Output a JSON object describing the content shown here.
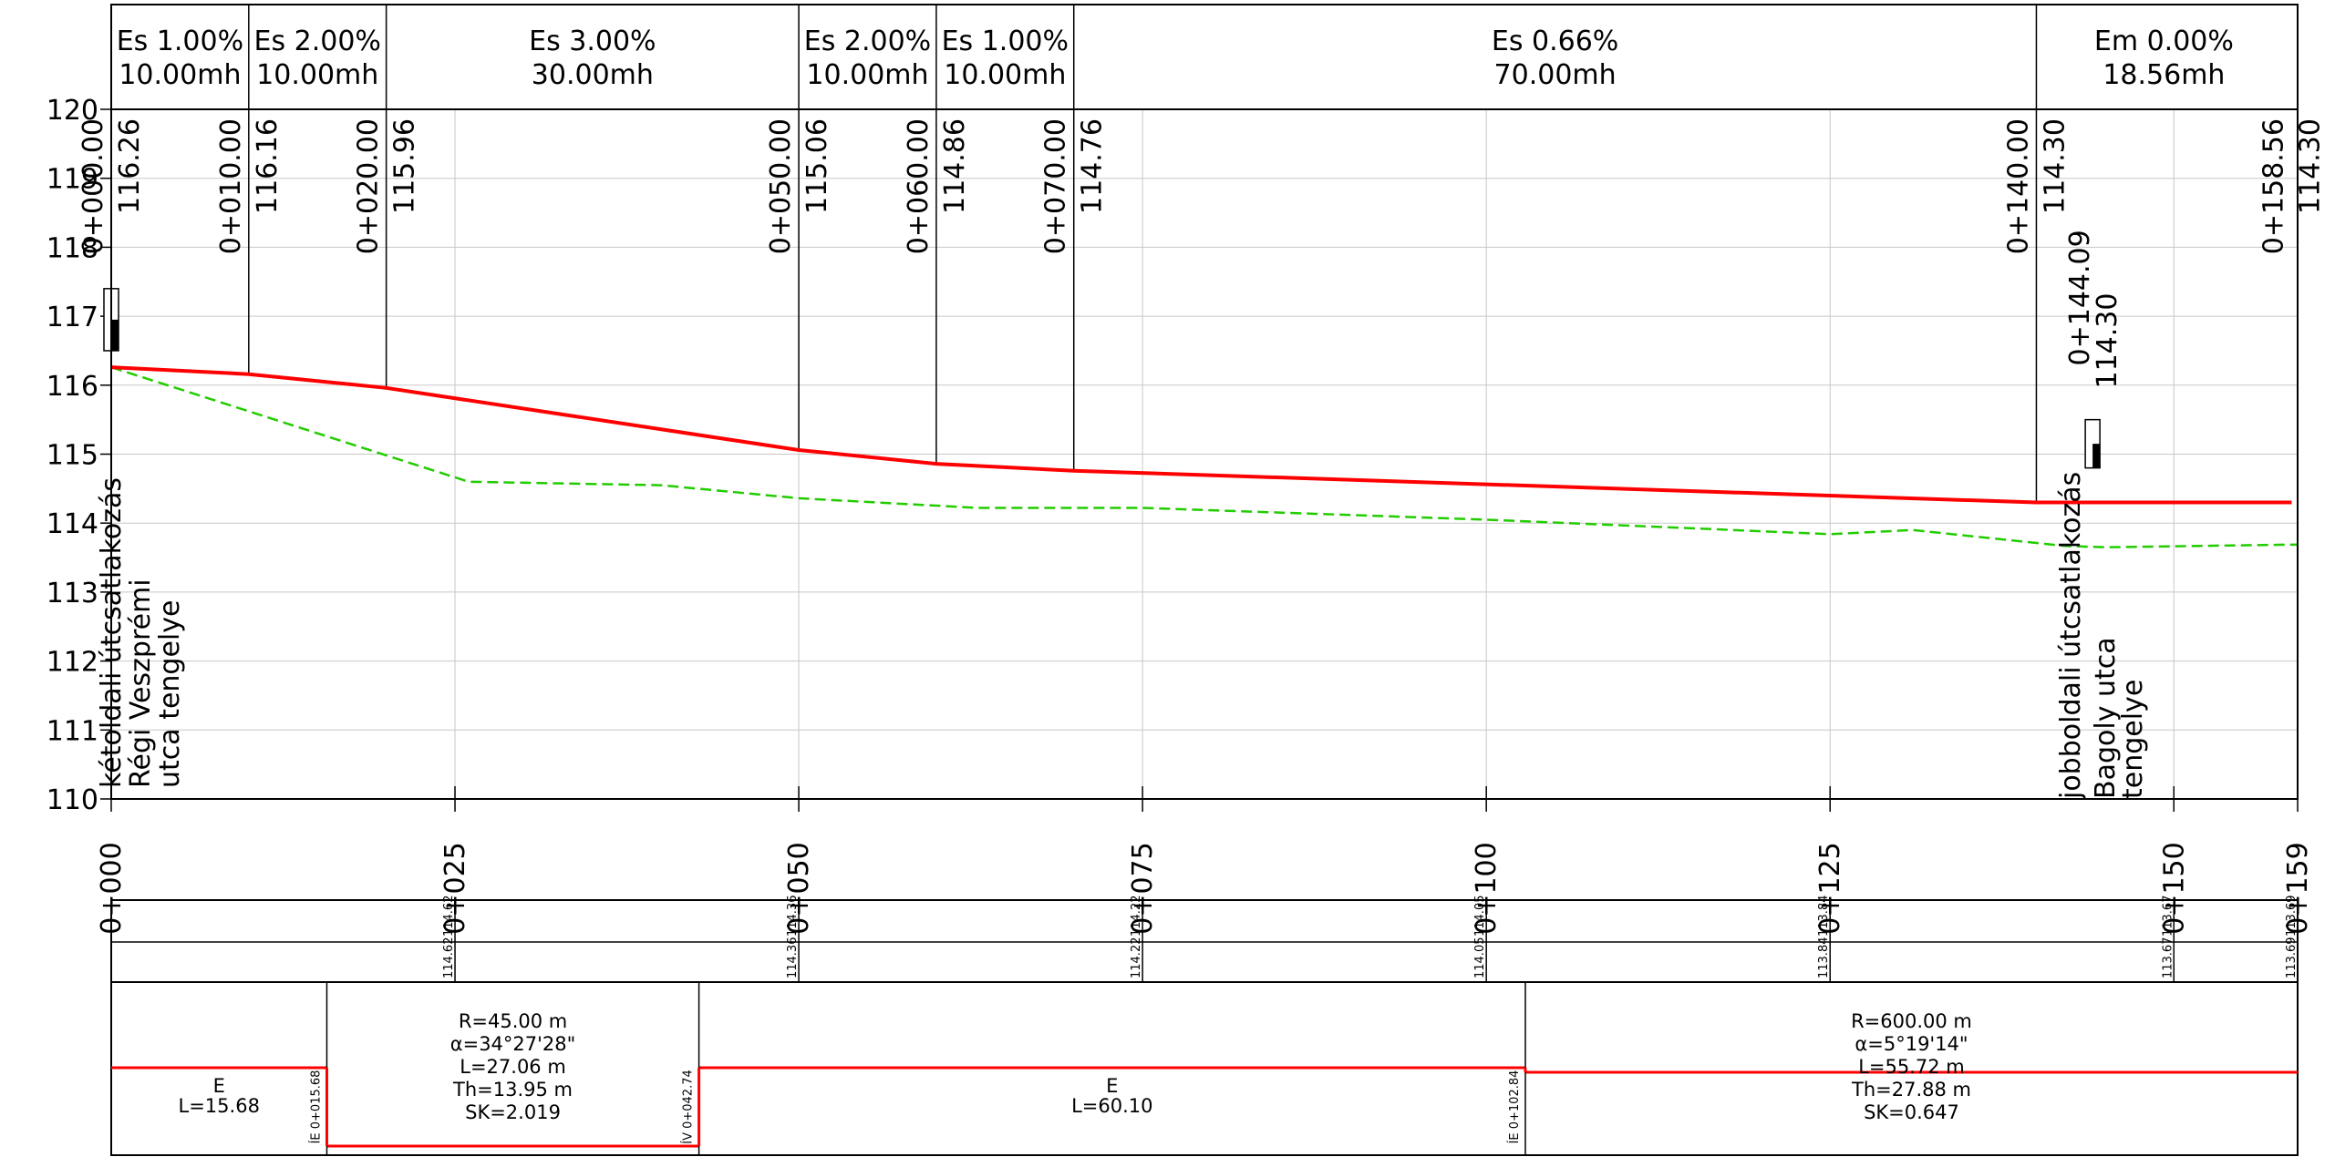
{
  "y_axis": {
    "min": 110,
    "max": 120,
    "labels": [
      "110",
      "111",
      "112",
      "113",
      "114",
      "115",
      "116",
      "117",
      "118",
      "119",
      "120"
    ]
  },
  "x_axis": {
    "min": 0,
    "max": 159,
    "ticks": [
      {
        "pos": 0,
        "label": "0+000"
      },
      {
        "pos": 25,
        "label": "0+025"
      },
      {
        "pos": 50,
        "label": "0+050"
      },
      {
        "pos": 75,
        "label": "0+075"
      },
      {
        "pos": 100,
        "label": "0+100"
      },
      {
        "pos": 125,
        "label": "0+125"
      },
      {
        "pos": 150,
        "label": "0+150"
      },
      {
        "pos": 159,
        "label": "0+159"
      }
    ]
  },
  "grades": [
    {
      "from": 0,
      "to": 10,
      "l1": "Es  1.00%",
      "l2": "10.00mh"
    },
    {
      "from": 10,
      "to": 20,
      "l1": "Es  2.00%",
      "l2": "10.00mh"
    },
    {
      "from": 20,
      "to": 50,
      "l1": "Es  3.00%",
      "l2": "30.00mh"
    },
    {
      "from": 50,
      "to": 60,
      "l1": "Es  2.00%",
      "l2": "10.00mh"
    },
    {
      "from": 60,
      "to": 70,
      "l1": "Es  1.00%",
      "l2": "10.00mh"
    },
    {
      "from": 70,
      "to": 140,
      "l1": "Es  0.66%",
      "l2": "70.00mh"
    },
    {
      "from": 140,
      "to": 158.56,
      "l1": "Em  0.00%",
      "l2": "18.56mh"
    }
  ],
  "stations": [
    {
      "pos": 0,
      "station": "0+000.00",
      "elev": "116.26"
    },
    {
      "pos": 10,
      "station": "0+010.00",
      "elev": "116.16"
    },
    {
      "pos": 20,
      "station": "0+020.00",
      "elev": "115.96"
    },
    {
      "pos": 50,
      "station": "0+050.00",
      "elev": "115.06"
    },
    {
      "pos": 60,
      "station": "0+060.00",
      "elev": "114.86"
    },
    {
      "pos": 70,
      "station": "0+070.00",
      "elev": "114.76"
    },
    {
      "pos": 140,
      "station": "0+140.00",
      "elev": "114.30"
    },
    {
      "pos": 158.56,
      "station": "0+158.56",
      "elev": "114.30"
    }
  ],
  "design_line": [
    [
      0,
      116.26
    ],
    [
      10,
      116.16
    ],
    [
      20,
      115.96
    ],
    [
      50,
      115.06
    ],
    [
      60,
      114.86
    ],
    [
      70,
      114.76
    ],
    [
      140,
      114.3
    ],
    [
      158.56,
      114.3
    ]
  ],
  "ground_line": [
    [
      0,
      116.26
    ],
    [
      26,
      114.6
    ],
    [
      40,
      114.55
    ],
    [
      50,
      114.36
    ],
    [
      63,
      114.22
    ],
    [
      75,
      114.22
    ],
    [
      100,
      114.05
    ],
    [
      125,
      113.84
    ],
    [
      131,
      113.9
    ],
    [
      142,
      113.67
    ],
    [
      145,
      113.65
    ],
    [
      159,
      113.69
    ]
  ],
  "junctions": [
    {
      "id": "left",
      "pos": 0,
      "marker_elev": [
        117.4,
        116.5
      ],
      "label_lines": [
        "kétoldali útcsatlakozás",
        "Régi Veszprémi",
        "utca tengelye"
      ]
    },
    {
      "id": "right",
      "pos": 144.09,
      "station": "0+144.09",
      "elev": "114.30",
      "marker_elev": [
        115.5,
        114.8
      ],
      "label_lines": [
        "jobboldali útcsatlakozás",
        "Bagoly utca",
        "tengelye"
      ]
    }
  ],
  "bottom_table": {
    "row1": [
      {
        "pos": 25,
        "left": "",
        "right": "114.62"
      },
      {
        "pos": 25,
        "left": "114.62",
        "right": ""
      },
      {
        "pos": 50,
        "left": "",
        "right": "114.36"
      },
      {
        "pos": 75,
        "left": "",
        "right": "114.22"
      },
      {
        "pos": 100,
        "left": "",
        "right": "114.05"
      },
      {
        "pos": 125,
        "left": "",
        "right": "113.84"
      },
      {
        "pos": 150,
        "left": "",
        "right": "113.67"
      },
      {
        "pos": 159,
        "left": "",
        "right": "113.69"
      }
    ],
    "row1_values": [
      {
        "pos": 25,
        "row": 1,
        "text": "114.62"
      },
      {
        "pos": 25,
        "row": 2,
        "text": "114.62"
      },
      {
        "pos": 50,
        "row": 1,
        "text": "114.36"
      },
      {
        "pos": 50,
        "row": 2,
        "text": "114.36"
      },
      {
        "pos": 75,
        "row": 1,
        "text": "114.22"
      },
      {
        "pos": 75,
        "row": 2,
        "text": "114.22"
      },
      {
        "pos": 100,
        "row": 1,
        "text": "114.05"
      },
      {
        "pos": 100,
        "row": 2,
        "text": "114.05"
      },
      {
        "pos": 125,
        "row": 1,
        "text": "113.84"
      },
      {
        "pos": 125,
        "row": 2,
        "text": "113.84"
      },
      {
        "pos": 150,
        "row": 1,
        "text": "113.67"
      },
      {
        "pos": 150,
        "row": 2,
        "text": "113.67"
      },
      {
        "pos": 159,
        "row": 1,
        "text": "113.69"
      },
      {
        "pos": 159,
        "row": 2,
        "text": "113.69"
      }
    ]
  },
  "alignment": {
    "segments": [
      {
        "from": 0,
        "to": 15.68,
        "kind": "straight",
        "lines": [
          "E",
          "L=15.68"
        ]
      },
      {
        "from": 15.68,
        "to": 42.74,
        "kind": "curve-down",
        "lines": [
          "R=45.00  m",
          "α=34°27'28\"",
          "L=27.06  m",
          "Th=13.95  m",
          "SK=2.019"
        ]
      },
      {
        "from": 42.74,
        "to": 102.84,
        "kind": "straight",
        "lines": [
          "E",
          "L=60.10"
        ]
      },
      {
        "from": 102.84,
        "to": 159,
        "kind": "curve-mid",
        "lines": [
          "R=600.00  m",
          "α=5°19'14\"",
          "L=55.72  m",
          "Th=27.88  m",
          "SK=0.647"
        ]
      }
    ],
    "points": [
      {
        "pos": 15.68,
        "text": "ÍE 0+015.68"
      },
      {
        "pos": 42.74,
        "text": "ÍV 0+042.74"
      },
      {
        "pos": 102.84,
        "text": "ÍE 0+102.84"
      }
    ]
  },
  "colors": {
    "design": "#ff0000",
    "ground": "#22cc00",
    "grid": "#c8c8c8"
  }
}
